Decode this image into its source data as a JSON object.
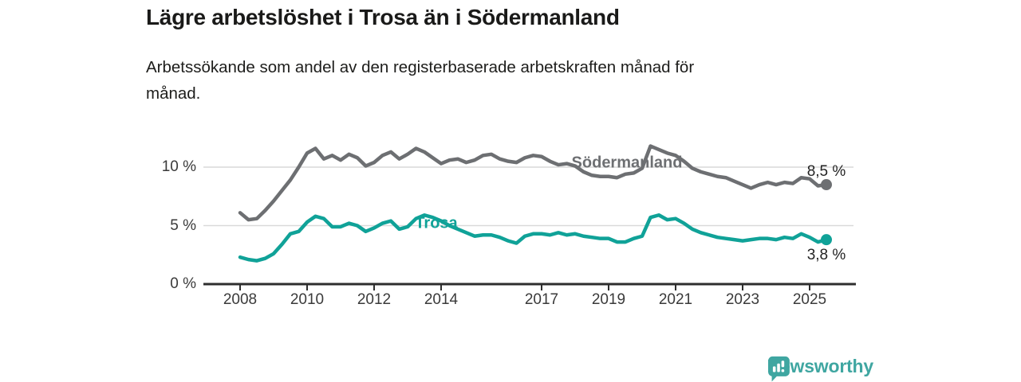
{
  "header": {
    "title": "Lägre arbetslöshet i Trosa än i Södermanland",
    "subtitle_lines": [
      "Arbetssökande som andel av den registerbaserade arbetskraften månad för",
      "månad."
    ]
  },
  "chart_data": {
    "type": "line",
    "title": "Lägre arbetslöshet i Trosa än i Södermanland",
    "subtitle": "Arbetssökande som andel av den registerbaserade arbetskraften månad för månad.",
    "unit": "%",
    "x_start": 2008.0,
    "x_step": 0.25,
    "x_end": 2025.5,
    "x_ticks": [
      2008,
      2010,
      2012,
      2014,
      2017,
      2019,
      2021,
      2023,
      2025
    ],
    "x_tick_labels": [
      "2008",
      "2010",
      "2012",
      "2014",
      "2017",
      "2019",
      "2021",
      "2023",
      "2025"
    ],
    "y_ticks": [
      {
        "value": 0,
        "label": "0 %",
        "grid": false
      },
      {
        "value": 5,
        "label": "5 %",
        "grid": true
      },
      {
        "value": 10,
        "label": "10 %",
        "grid": true
      }
    ],
    "ylim": [
      0,
      13
    ],
    "grid": "horizontal-only",
    "legend_position": "inline-labels",
    "series": [
      {
        "name": "Södermanland",
        "color": "#6d6f72",
        "end_label": "8,5 %",
        "end_value": 8.5,
        "values": [
          6.1,
          5.5,
          5.6,
          6.3,
          7.1,
          8.0,
          8.9,
          10.0,
          11.2,
          11.6,
          10.7,
          11.0,
          10.6,
          11.1,
          10.8,
          10.1,
          10.4,
          11.0,
          11.3,
          10.7,
          11.1,
          11.6,
          11.3,
          10.8,
          10.3,
          10.6,
          10.7,
          10.4,
          10.6,
          11.0,
          11.1,
          10.7,
          10.5,
          10.4,
          10.8,
          11.0,
          10.9,
          10.5,
          10.2,
          10.3,
          10.1,
          9.6,
          9.3,
          9.2,
          9.2,
          9.1,
          9.4,
          9.5,
          9.9,
          11.8,
          11.5,
          11.2,
          11.0,
          10.5,
          9.9,
          9.6,
          9.4,
          9.2,
          9.1,
          8.8,
          8.5,
          8.2,
          8.5,
          8.7,
          8.5,
          8.7,
          8.6,
          9.1,
          9.0,
          8.4,
          8.5
        ]
      },
      {
        "name": "Trosa",
        "color": "#10a298",
        "end_label": "3,8 %",
        "end_value": 3.8,
        "values": [
          2.3,
          2.1,
          2.0,
          2.2,
          2.6,
          3.4,
          4.3,
          4.5,
          5.3,
          5.8,
          5.6,
          4.9,
          4.9,
          5.2,
          5.0,
          4.5,
          4.8,
          5.2,
          5.4,
          4.7,
          4.9,
          5.6,
          5.9,
          5.7,
          5.4,
          5.0,
          4.7,
          4.4,
          4.1,
          4.2,
          4.2,
          4.0,
          3.7,
          3.5,
          4.1,
          4.3,
          4.3,
          4.2,
          4.4,
          4.2,
          4.3,
          4.1,
          4.0,
          3.9,
          3.9,
          3.6,
          3.6,
          3.9,
          4.1,
          5.7,
          5.9,
          5.5,
          5.6,
          5.2,
          4.7,
          4.4,
          4.2,
          4.0,
          3.9,
          3.8,
          3.7,
          3.8,
          3.9,
          3.9,
          3.8,
          4.0,
          3.9,
          4.3,
          4.0,
          3.6,
          3.8
        ]
      }
    ]
  },
  "branding": {
    "logo_text": "Newsworthy",
    "logo_icon": "newsworthy-speech-bubble-bar-chart-icon",
    "brand_color": "#3fa6a1"
  }
}
